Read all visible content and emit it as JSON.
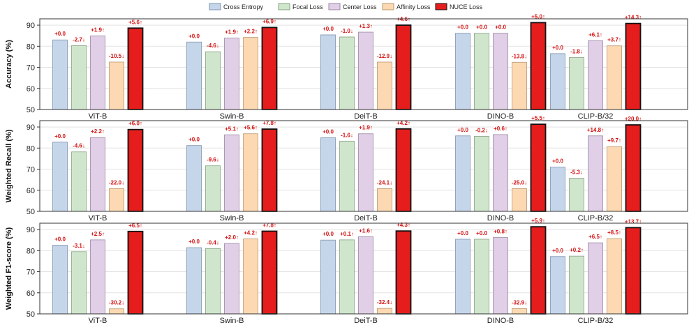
{
  "legend": [
    {
      "name": "Cross Entropy",
      "color": "#c5d6eb",
      "stroke": "#7f93ad"
    },
    {
      "name": "Focal Loss",
      "color": "#cfe6cc",
      "stroke": "#86a283"
    },
    {
      "name": "Center Loss",
      "color": "#e0cfe6",
      "stroke": "#9a88a3"
    },
    {
      "name": "Affinity Loss",
      "color": "#fcd9b2",
      "stroke": "#b9986f"
    },
    {
      "name": "NUCE Loss",
      "color": "#e61d1d",
      "stroke": "#111111"
    }
  ],
  "chart_data": [
    {
      "type": "bar",
      "title": "",
      "ylabel": "Accuracy (%)",
      "ylim": [
        50,
        93
      ],
      "yticks": [
        50,
        60,
        70,
        80,
        90
      ],
      "categories": [
        "ViT-B",
        "Swin-B",
        "DeiT-B",
        "DINO-B",
        "CLIP-B/32"
      ],
      "series": [
        {
          "name": "Cross Entropy",
          "values": [
            83.0,
            82.0,
            85.4,
            86.2,
            76.5
          ],
          "labels": [
            "+0.0",
            "+0.0",
            "+0.0",
            "+0.0",
            "+0.0"
          ]
        },
        {
          "name": "Focal Loss",
          "values": [
            80.3,
            77.4,
            84.4,
            86.2,
            74.7
          ],
          "labels": [
            "-2.7↓",
            "-4.6↓",
            "-1.0↓",
            "+0.0",
            "-1.8↓"
          ]
        },
        {
          "name": "Center Loss",
          "values": [
            84.9,
            83.9,
            86.7,
            86.2,
            82.6
          ],
          "labels": [
            "+1.9↑",
            "+1.9↑",
            "+1.3↑",
            "+0.0",
            "+6.1↑"
          ]
        },
        {
          "name": "Affinity Loss",
          "values": [
            72.5,
            84.2,
            72.5,
            72.4,
            80.2
          ],
          "labels": [
            "-10.5↓",
            "+2.2↑",
            "-12.9↓",
            "-13.8↓",
            "+3.7↑"
          ]
        },
        {
          "name": "NUCE Loss",
          "values": [
            88.6,
            88.9,
            90.0,
            91.2,
            90.8
          ],
          "labels": [
            "+5.6↑",
            "+6.9↑",
            "+4.6↑",
            "+5.0↑",
            "+14.3↑"
          ]
        }
      ]
    },
    {
      "type": "bar",
      "title": "",
      "ylabel": "Weighted Recall (%)",
      "ylim": [
        50,
        93
      ],
      "yticks": [
        50,
        60,
        70,
        80,
        90
      ],
      "categories": [
        "ViT-B",
        "Swin-B",
        "DeiT-B",
        "DINO-B",
        "CLIP-B/32"
      ],
      "series": [
        {
          "name": "Cross Entropy",
          "values": [
            82.8,
            81.2,
            84.9,
            85.8,
            71.0
          ],
          "labels": [
            "+0.0",
            "+0.0",
            "+0.0",
            "+0.0",
            "+0.0"
          ]
        },
        {
          "name": "Focal Loss",
          "values": [
            78.2,
            71.6,
            83.3,
            85.6,
            65.7
          ],
          "labels": [
            "-4.6↓",
            "-9.6↓",
            "-1.6↓",
            "-0.2↓",
            "-5.3↓"
          ]
        },
        {
          "name": "Center Loss",
          "values": [
            85.0,
            86.3,
            86.8,
            86.4,
            85.8
          ],
          "labels": [
            "+2.2↑",
            "+5.1↑",
            "+1.9↑",
            "+0.6↑",
            "+14.8↑"
          ]
        },
        {
          "name": "Affinity Loss",
          "values": [
            60.8,
            86.8,
            60.8,
            60.8,
            80.7
          ],
          "labels": [
            "-22.0↓",
            "+5.6↑",
            "-24.1↓",
            "-25.0↓",
            "+9.7↑"
          ]
        },
        {
          "name": "NUCE Loss",
          "values": [
            88.8,
            89.0,
            89.1,
            91.3,
            91.0
          ],
          "labels": [
            "+6.0↑",
            "+7.8↑",
            "+4.2↑",
            "+5.5↑",
            "+20.0↑"
          ]
        }
      ]
    },
    {
      "type": "bar",
      "title": "",
      "ylabel": "Weighted F1-score (%)",
      "ylim": [
        50,
        93
      ],
      "yticks": [
        50,
        60,
        70,
        80,
        90
      ],
      "categories": [
        "ViT-B",
        "Swin-B",
        "DeiT-B",
        "DINO-B",
        "CLIP-B/32"
      ],
      "series": [
        {
          "name": "Cross Entropy",
          "values": [
            82.6,
            81.4,
            85.0,
            85.4,
            77.2
          ],
          "labels": [
            "+0.0",
            "+0.0",
            "+0.0",
            "+0.0",
            "+0.0"
          ]
        },
        {
          "name": "Focal Loss",
          "values": [
            79.5,
            81.0,
            85.1,
            85.4,
            77.4
          ],
          "labels": [
            "-3.1↓",
            "-0.4↓",
            "+0.1↑",
            "+0.0",
            "+0.2↑"
          ]
        },
        {
          "name": "Center Loss",
          "values": [
            85.1,
            83.4,
            86.6,
            86.2,
            83.7
          ],
          "labels": [
            "+2.5↑",
            "+2.0↑",
            "+1.6↑",
            "+0.8↑",
            "+6.5↑"
          ]
        },
        {
          "name": "Affinity Loss",
          "values": [
            52.4,
            85.6,
            52.6,
            52.5,
            85.7
          ],
          "labels": [
            "-30.2↓",
            "+4.2↑",
            "-32.4↓",
            "-32.9↓",
            "+8.5↑"
          ]
        },
        {
          "name": "NUCE Loss",
          "values": [
            89.1,
            89.2,
            89.3,
            91.3,
            90.9
          ],
          "labels": [
            "+6.5↑",
            "+7.8↑",
            "+4.3↑",
            "+5.9↑",
            "+13.7↑"
          ]
        }
      ]
    }
  ]
}
